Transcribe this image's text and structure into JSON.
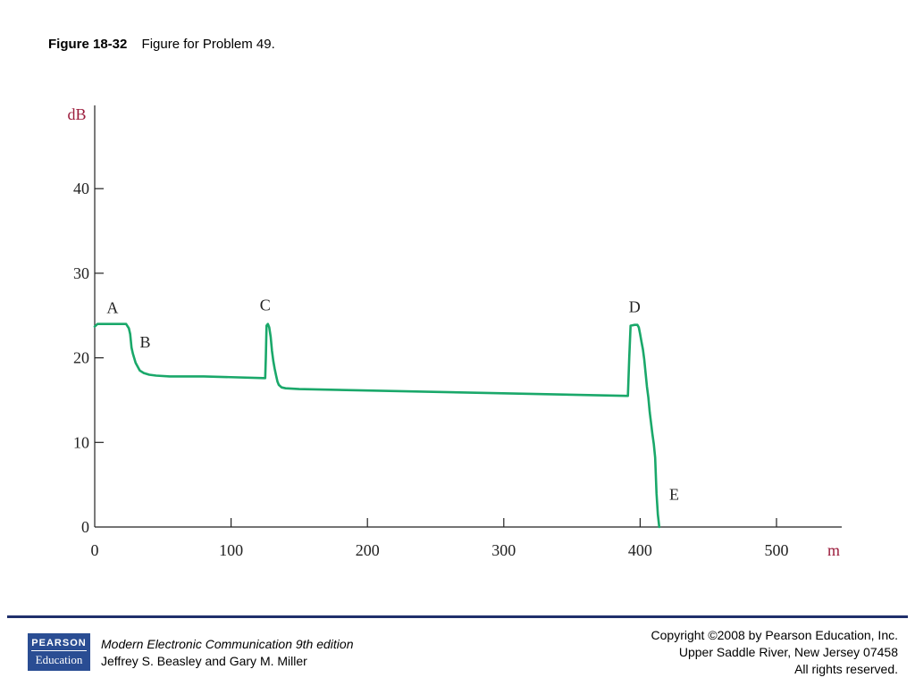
{
  "caption": {
    "number": "Figure 18-32",
    "text": "Figure for Problem 49."
  },
  "chart_data": {
    "type": "line",
    "xlabel": "m",
    "ylabel": "dB",
    "xlim": [
      0,
      550
    ],
    "ylim": [
      0,
      48
    ],
    "x_ticks": [
      0,
      100,
      200,
      300,
      400,
      500
    ],
    "y_ticks": [
      0,
      10,
      20,
      30,
      40
    ],
    "grid": false,
    "line_color": "#1aa86a",
    "axis_label_color": "#9b1b3b",
    "series": [
      {
        "x": [
          0,
          2,
          10,
          18,
          23,
          25,
          26,
          27,
          28,
          30,
          33,
          36,
          40,
          45,
          55,
          80,
          124,
          125,
          125.5,
          126,
          127,
          128,
          129,
          130,
          131,
          132,
          133,
          134,
          135,
          137,
          140,
          150,
          390,
          391,
          392,
          393,
          396,
          398,
          399,
          400,
          401,
          402,
          403,
          404,
          405,
          406,
          407,
          408,
          409,
          410,
          411,
          412,
          413,
          414
        ],
        "values": [
          23.7,
          24.0,
          24.0,
          24.0,
          24.0,
          23.5,
          22.8,
          21.2,
          20.5,
          19.4,
          18.5,
          18.2,
          18.0,
          17.9,
          17.8,
          17.8,
          17.6,
          17.6,
          20.0,
          23.8,
          24.0,
          23.6,
          22.5,
          20.8,
          19.6,
          18.7,
          17.9,
          17.2,
          16.8,
          16.5,
          16.4,
          16.3,
          15.5,
          15.5,
          20.0,
          23.8,
          23.9,
          23.9,
          23.6,
          22.8,
          21.9,
          21.0,
          19.8,
          18.2,
          16.6,
          15.3,
          13.6,
          12.3,
          11.0,
          9.8,
          8.2,
          4.0,
          1.5,
          0
        ]
      }
    ],
    "annotations": [
      {
        "label": "A",
        "x": 13,
        "y": 25.3
      },
      {
        "label": "B",
        "x": 37,
        "y": 21.2
      },
      {
        "label": "C",
        "x": 125,
        "y": 25.6
      },
      {
        "label": "D",
        "x": 396,
        "y": 25.4
      },
      {
        "label": "E",
        "x": 425,
        "y": 3.2
      }
    ]
  },
  "footer": {
    "logo_top": "PEARSON",
    "logo_bottom": "Education",
    "book_title": "Modern Electronic Communication 9th edition",
    "authors": "Jeffrey S. Beasley and Gary M. Miller",
    "copyright_1": "Copyright ©2008 by Pearson Education, Inc.",
    "copyright_2": "Upper Saddle River, New Jersey 07458",
    "copyright_3": "All rights reserved."
  }
}
